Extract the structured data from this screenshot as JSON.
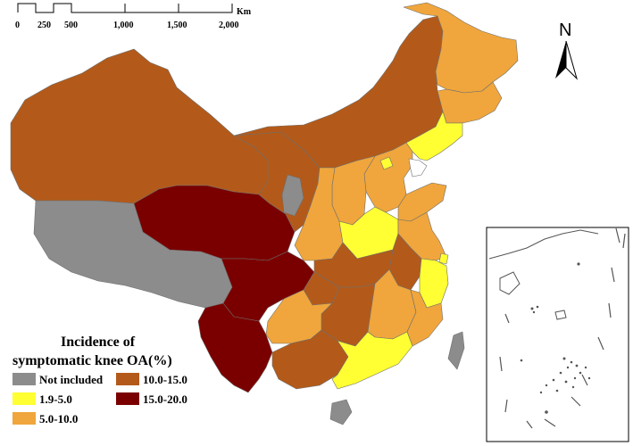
{
  "scalebar": {
    "ticks": [
      "0",
      "250",
      "500",
      "1,000",
      "1,500",
      "2,000"
    ],
    "unit": "Km"
  },
  "north_arrow": {
    "label": "N",
    "icon": "north-arrow-icon"
  },
  "legend": {
    "title_line1": "Incidence of",
    "title_line2": "symptomatic knee OA(%)",
    "items": [
      {
        "label": "Not included",
        "color": "#8c8c8c"
      },
      {
        "label": "10.0-15.0",
        "color": "#b35a1a"
      },
      {
        "label": "1.9-5.0",
        "color": "#ffff33"
      },
      {
        "label": "15.0-20.0",
        "color": "#7a0000"
      },
      {
        "label": "5.0-10.0",
        "color": "#f0a63c"
      }
    ]
  },
  "colors": {
    "not_included": "#8c8c8c",
    "low": "#ffff33",
    "mid": "#f0a63c",
    "high": "#b35a1a",
    "very_high": "#7a0000",
    "border": "#6f6f6f"
  }
}
